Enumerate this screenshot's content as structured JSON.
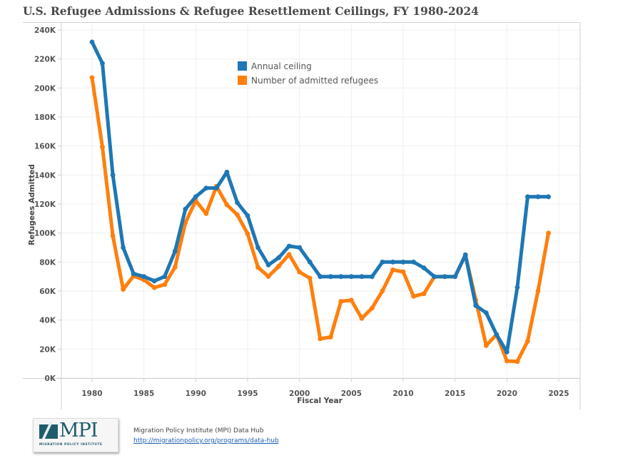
{
  "title": "U.S. Refugee Admissions & Refugee Resettlement Ceilings, FY 1980-2024",
  "footer": {
    "source": "Migration Policy Institute (MPI) Data Hub",
    "link": "http://migrationpolicy.org/programs/data-hub",
    "logo_text": "MPI",
    "logo_subtext": "MIGRATION POLICY INSTITUTE"
  },
  "colors": {
    "ceiling": "#1f77b4",
    "admitted": "#ff7f0e",
    "grid": "#efefef",
    "axis": "#d0d0d0"
  },
  "chart_data": {
    "type": "line",
    "title": "U.S. Refugee Admissions & Refugee Resettlement Ceilings, FY 1980-2024",
    "xlabel": "Fiscal Year",
    "ylabel": "Refugees Admitted",
    "xlim": [
      1975.5,
      2027
    ],
    "ylim": [
      0,
      240000
    ],
    "grid": true,
    "legend_position": "top-center",
    "x_ticks": [
      1980,
      1985,
      1990,
      1995,
      2000,
      2005,
      2010,
      2015,
      2020,
      2025
    ],
    "x_tick_labels": [
      "1980",
      "1985",
      "1990",
      "1995",
      "2000",
      "2005",
      "2010",
      "2015",
      "2020",
      "2025"
    ],
    "y_ticks": [
      0,
      20000,
      40000,
      60000,
      80000,
      100000,
      120000,
      140000,
      160000,
      180000,
      200000,
      220000,
      240000
    ],
    "y_tick_labels": [
      "0K",
      "20K",
      "40K",
      "60K",
      "80K",
      "100K",
      "120K",
      "140K",
      "160K",
      "180K",
      "200K",
      "220K",
      "240K"
    ],
    "x": [
      1980,
      1981,
      1982,
      1983,
      1984,
      1985,
      1986,
      1987,
      1988,
      1989,
      1990,
      1991,
      1992,
      1993,
      1994,
      1995,
      1996,
      1997,
      1998,
      1999,
      2000,
      2001,
      2002,
      2003,
      2004,
      2005,
      2006,
      2007,
      2008,
      2009,
      2010,
      2011,
      2012,
      2013,
      2014,
      2015,
      2016,
      2017,
      2018,
      2019,
      2020,
      2021,
      2022,
      2023,
      2024
    ],
    "series": [
      {
        "name": "Annual ceiling",
        "key": "ceiling",
        "values": [
          231700,
          217000,
          140000,
          90000,
          72000,
          70000,
          67000,
          70000,
          87500,
          116500,
          125000,
          131000,
          131000,
          142000,
          121000,
          112000,
          90000,
          78000,
          83000,
          91000,
          90000,
          80000,
          70000,
          70000,
          70000,
          70000,
          70000,
          70000,
          80000,
          80000,
          80000,
          80000,
          76000,
          70000,
          70000,
          70000,
          85000,
          50000,
          45000,
          30000,
          18000,
          62500,
          125000,
          125000,
          125000
        ]
      },
      {
        "name": "Number of admitted refugees",
        "key": "admitted",
        "values": [
          207100,
          159300,
          98100,
          61200,
          70400,
          67700,
          62400,
          64500,
          76500,
          107100,
          122300,
          113400,
          132200,
          119500,
          112600,
          99500,
          76400,
          70100,
          77100,
          85300,
          73100,
          68900,
          27100,
          28300,
          52900,
          53700,
          41200,
          48300,
          60100,
          74600,
          73300,
          56400,
          58200,
          69900,
          69900,
          70000,
          84900,
          53700,
          22500,
          30000,
          11800,
          11400,
          25500,
          60000,
          100000
        ]
      }
    ]
  }
}
